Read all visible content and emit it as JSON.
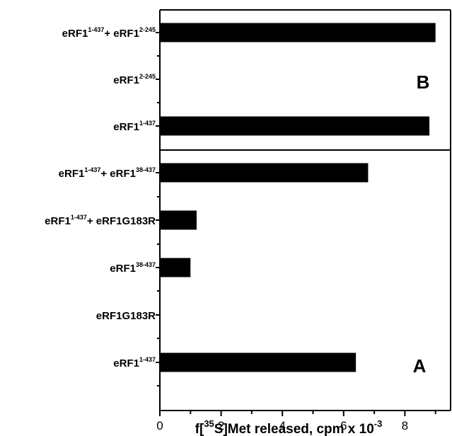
{
  "chart_data": {
    "type": "bar",
    "orientation": "horizontal",
    "xlabel": {
      "pre": "f[",
      "sup": "35",
      "mid": "S]Met released, cpm x 10",
      "sup2": "-3"
    },
    "xlim": [
      0,
      9.6
    ],
    "xticks": [
      "0",
      "2",
      "4",
      "6",
      "8"
    ],
    "xtick_values": [
      0,
      2,
      4,
      6,
      8
    ],
    "bar_color": "#000000",
    "panels": [
      {
        "id": "B",
        "label": "B",
        "categories": [
          {
            "parts": [
              {
                "t": "eRF1"
              },
              {
                "t": "1-437",
                "sup": true
              },
              {
                "t": "+ eRF1"
              },
              {
                "t": "2-245",
                "sup": true
              }
            ],
            "value": 9.0
          },
          {
            "parts": [
              {
                "t": "eRF1"
              },
              {
                "t": "2-245",
                "sup": true
              }
            ],
            "value": 0
          },
          {
            "parts": [
              {
                "t": "eRF1"
              },
              {
                "t": "1-437",
                "sup": true
              }
            ],
            "value": 8.8
          }
        ]
      },
      {
        "id": "A",
        "label": "A",
        "categories": [
          {
            "parts": [
              {
                "t": "eRF1"
              },
              {
                "t": "1-437",
                "sup": true
              },
              {
                "t": "+ eRF1"
              },
              {
                "t": "38-437",
                "sup": true
              }
            ],
            "value": 6.8
          },
          {
            "parts": [
              {
                "t": "eRF1"
              },
              {
                "t": "1-437",
                "sup": true
              },
              {
                "t": "+ eRF1G183R"
              }
            ],
            "value": 1.2
          },
          {
            "parts": [
              {
                "t": "eRF1"
              },
              {
                "t": "38-437",
                "sup": true
              }
            ],
            "value": 1.0
          },
          {
            "parts": [
              {
                "t": "eRF1G183R"
              }
            ],
            "value": 0
          },
          {
            "parts": [
              {
                "t": "eRF1"
              },
              {
                "t": "1-437",
                "sup": true
              }
            ],
            "value": 6.4
          }
        ]
      }
    ]
  }
}
